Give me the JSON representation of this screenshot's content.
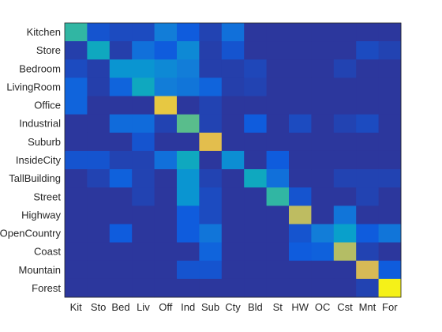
{
  "chart_data": {
    "type": "heatmap",
    "title": "",
    "xlabel": "",
    "ylabel": "",
    "x_categories": [
      "Kit",
      "Sto",
      "Bed",
      "Liv",
      "Off",
      "Ind",
      "Sub",
      "Cty",
      "Bld",
      "St",
      "HW",
      "OC",
      "Cst",
      "Mnt",
      "For"
    ],
    "y_categories": [
      "Kitchen",
      "Store",
      "Bedroom",
      "LivingRoom",
      "Office",
      "Industrial",
      "Suburb",
      "InsideCity",
      "TallBuilding",
      "Street",
      "Highway",
      "OpenCountry",
      "Coast",
      "Mountain",
      "Forest"
    ],
    "value_range": [
      0,
      1
    ],
    "colormap": "parula",
    "values": [
      [
        0.55,
        0.1,
        0.08,
        0.08,
        0.25,
        0.12,
        0.06,
        0.2,
        0.03,
        0.03,
        0.03,
        0.03,
        0.03,
        0.03,
        0.03
      ],
      [
        0.05,
        0.45,
        0.05,
        0.2,
        0.12,
        0.3,
        0.05,
        0.1,
        0.03,
        0.03,
        0.03,
        0.03,
        0.03,
        0.08,
        0.06
      ],
      [
        0.08,
        0.05,
        0.35,
        0.35,
        0.3,
        0.25,
        0.05,
        0.05,
        0.07,
        0.03,
        0.03,
        0.03,
        0.06,
        0.03,
        0.03
      ],
      [
        0.15,
        0.05,
        0.15,
        0.45,
        0.25,
        0.22,
        0.15,
        0.05,
        0.06,
        0.03,
        0.03,
        0.03,
        0.03,
        0.03,
        0.03
      ],
      [
        0.15,
        0.03,
        0.03,
        0.03,
        0.9,
        0.03,
        0.06,
        0.03,
        0.03,
        0.03,
        0.03,
        0.03,
        0.03,
        0.03,
        0.03
      ],
      [
        0.03,
        0.03,
        0.18,
        0.18,
        0.06,
        0.62,
        0.06,
        0.03,
        0.12,
        0.03,
        0.08,
        0.03,
        0.06,
        0.08,
        0.03
      ],
      [
        0.03,
        0.03,
        0.03,
        0.1,
        0.03,
        0.03,
        0.88,
        0.03,
        0.03,
        0.03,
        0.03,
        0.03,
        0.03,
        0.03,
        0.03
      ],
      [
        0.1,
        0.1,
        0.06,
        0.06,
        0.2,
        0.45,
        0.03,
        0.32,
        0.03,
        0.12,
        0.03,
        0.03,
        0.03,
        0.03,
        0.03
      ],
      [
        0.03,
        0.06,
        0.14,
        0.06,
        0.03,
        0.35,
        0.06,
        0.03,
        0.45,
        0.2,
        0.03,
        0.03,
        0.06,
        0.06,
        0.06
      ],
      [
        0.03,
        0.03,
        0.03,
        0.06,
        0.03,
        0.35,
        0.08,
        0.03,
        0.03,
        0.55,
        0.1,
        0.03,
        0.03,
        0.06,
        0.03
      ],
      [
        0.03,
        0.03,
        0.03,
        0.03,
        0.03,
        0.12,
        0.08,
        0.03,
        0.03,
        0.03,
        0.8,
        0.03,
        0.22,
        0.03,
        0.03
      ],
      [
        0.03,
        0.03,
        0.12,
        0.03,
        0.03,
        0.12,
        0.22,
        0.03,
        0.03,
        0.03,
        0.1,
        0.25,
        0.4,
        0.12,
        0.22
      ],
      [
        0.03,
        0.03,
        0.03,
        0.03,
        0.03,
        0.03,
        0.15,
        0.03,
        0.03,
        0.03,
        0.12,
        0.14,
        0.78,
        0.06,
        0.03
      ],
      [
        0.03,
        0.03,
        0.03,
        0.03,
        0.03,
        0.1,
        0.1,
        0.03,
        0.03,
        0.03,
        0.03,
        0.03,
        0.03,
        0.85,
        0.12
      ],
      [
        0.03,
        0.03,
        0.03,
        0.03,
        0.03,
        0.03,
        0.03,
        0.03,
        0.03,
        0.03,
        0.03,
        0.03,
        0.03,
        0.06,
        0.98
      ]
    ]
  }
}
